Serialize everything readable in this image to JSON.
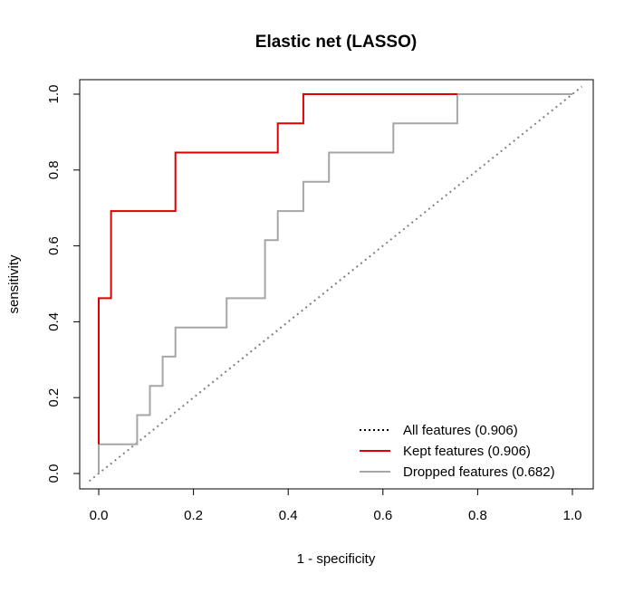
{
  "chart_data": {
    "type": "line",
    "title": "Elastic net (LASSO)",
    "xlabel": "1 - specificity",
    "ylabel": "sensitivity",
    "xlim": [
      0,
      1
    ],
    "ylim": [
      0,
      1
    ],
    "xticks": [
      "0.0",
      "0.2",
      "0.4",
      "0.6",
      "0.8",
      "1.0"
    ],
    "yticks": [
      "0.0",
      "0.2",
      "0.4",
      "0.6",
      "0.8",
      "1.0"
    ],
    "grid": false,
    "legend_position": "bottom-right",
    "series": [
      {
        "name": "All features (0.906)",
        "color": "#000000",
        "style": "dotted",
        "x": [
          0,
          1
        ],
        "y": [
          0,
          1
        ],
        "legend_only": true
      },
      {
        "name": "Kept features (0.906)",
        "color": "#dd0000",
        "style": "solid",
        "x": [
          0,
          0,
          0.026,
          0.026,
          0.162,
          0.162,
          0.378,
          0.378,
          0.432,
          0.432,
          0.757
        ],
        "y": [
          0.077,
          0.462,
          0.462,
          0.692,
          0.692,
          0.846,
          0.846,
          0.923,
          0.923,
          1.0,
          1.0
        ]
      },
      {
        "name": "Dropped features (0.682)",
        "color": "#a6a6a6",
        "style": "solid",
        "x": [
          0,
          0,
          0.081,
          0.081,
          0.108,
          0.108,
          0.135,
          0.135,
          0.162,
          0.162,
          0.27,
          0.27,
          0.351,
          0.351,
          0.378,
          0.378,
          0.432,
          0.432,
          0.486,
          0.486,
          0.622,
          0.622,
          0.757,
          0.757,
          1.0
        ],
        "y": [
          0,
          0.077,
          0.077,
          0.154,
          0.154,
          0.231,
          0.231,
          0.308,
          0.308,
          0.385,
          0.385,
          0.462,
          0.462,
          0.615,
          0.615,
          0.692,
          0.692,
          0.769,
          0.769,
          0.846,
          0.846,
          0.923,
          0.923,
          1.0,
          1.0
        ]
      }
    ],
    "reference_line": {
      "x": [
        -0.02,
        1.02
      ],
      "y": [
        -0.02,
        1.02
      ],
      "color": "#808080",
      "style": "dotted"
    }
  }
}
